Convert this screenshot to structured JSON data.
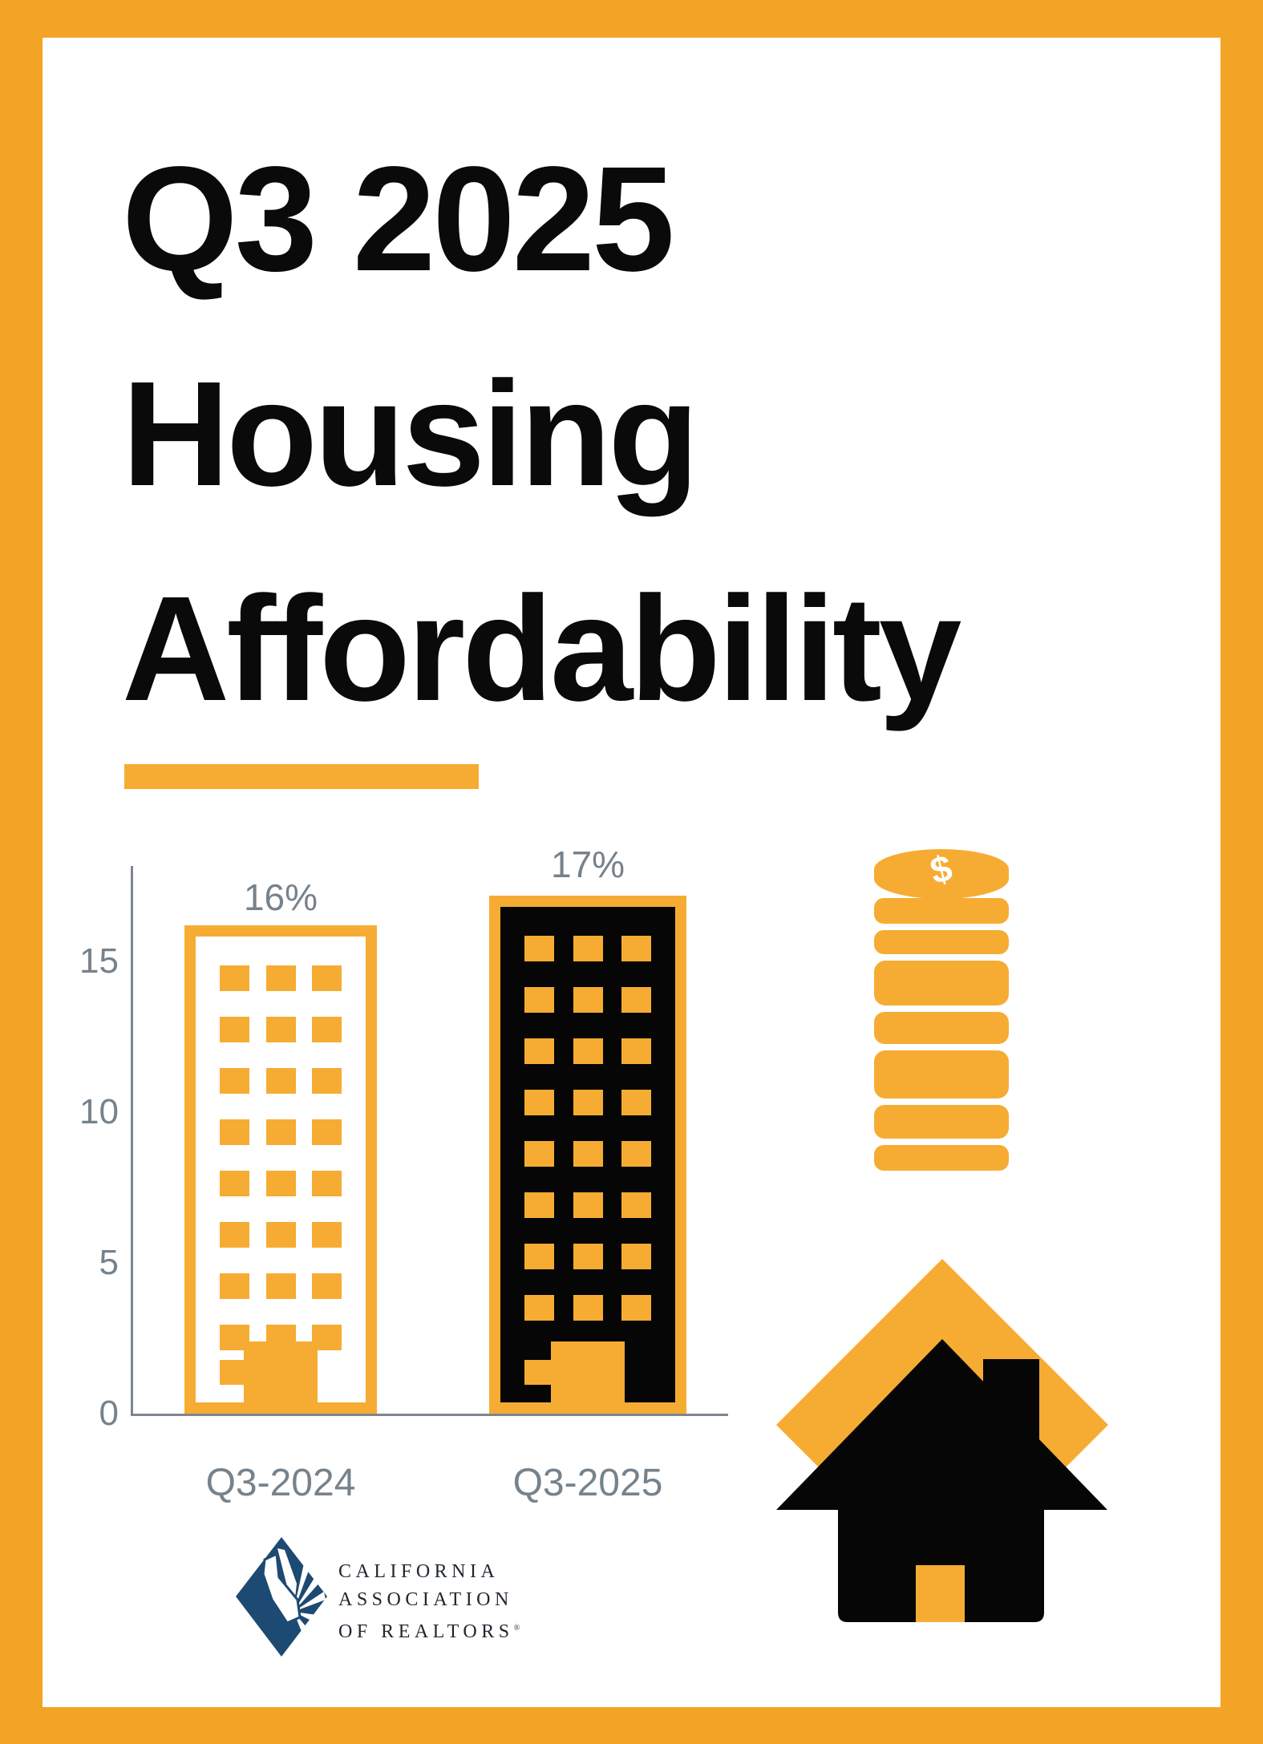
{
  "title": {
    "line1": "Q3 2025",
    "line2": "Housing",
    "line3": "Affordability"
  },
  "chart_data": {
    "type": "bar",
    "title": "",
    "xlabel": "",
    "ylabel": "",
    "categories": [
      "Q3-2024",
      "Q3-2025"
    ],
    "values": [
      16,
      17
    ],
    "data_labels": [
      "16%",
      "17%"
    ],
    "yticks": [
      0,
      5,
      10,
      15
    ],
    "ylim": [
      0,
      17.5
    ],
    "grid": false,
    "legend": "none",
    "bar_style": "building-pictogram",
    "bar_colors": [
      "#FFFFFF outline #F6AC33",
      "#060606 outline #F6AC33"
    ]
  },
  "icons": {
    "coins": "coins-stack-icon",
    "dollar_symbol": "$",
    "house": "house-icon"
  },
  "logo": {
    "line1": "CALIFORNIA",
    "line2": "ASSOCIATION",
    "line3": "OF REALTORS",
    "registered": "®"
  },
  "colors": {
    "frame_orange": "#F3A424",
    "graphic_orange": "#F6AC33",
    "black": "#060606",
    "gray_text": "#76828C",
    "axis_gray": "#7D868F",
    "logo_navy": "#1D4A72",
    "logo_text": "#1E2630",
    "background": "#FFFFFF"
  }
}
